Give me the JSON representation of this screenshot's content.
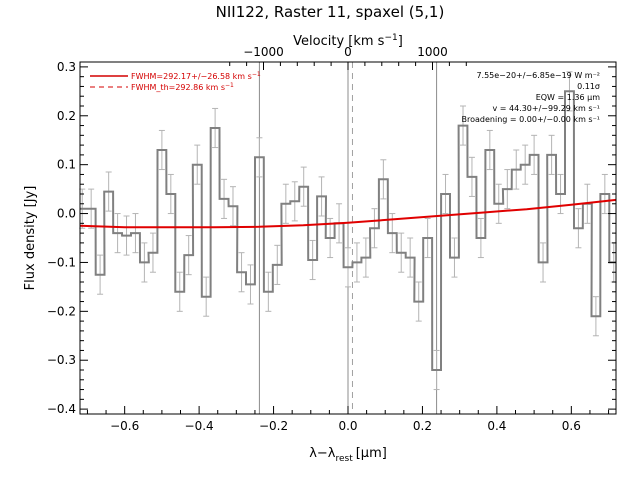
{
  "chart_data": {
    "type": "line",
    "title": "NII122, Raster 11, spaxel (5,1)",
    "xlabel": "λ−λ",
    "xlabel_sub": "rest",
    "xlabel_unit": "[μm]",
    "ylabel": "Flux density [Jy]",
    "top_axis_label": "Velocity [km s",
    "top_axis_sup": "−1",
    "top_axis_close": "]",
    "xlim": [
      -0.72,
      0.72
    ],
    "ylim": [
      -0.41,
      0.31
    ],
    "x_ticks": [
      -0.6,
      -0.4,
      -0.2,
      0.0,
      0.2,
      0.4,
      0.6
    ],
    "x_tick_labels": [
      "−0.6",
      "−0.4",
      "−0.2",
      "0.0",
      "0.2",
      "0.4",
      "0.6"
    ],
    "y_ticks": [
      -0.4,
      -0.3,
      -0.2,
      -0.1,
      0.0,
      0.1,
      0.2,
      0.3
    ],
    "y_tick_labels": [
      "−0.4",
      "−0.3",
      "−0.2",
      "−0.1",
      "0.0",
      "0.1",
      "0.2",
      "0.3"
    ],
    "top_ticks_x": [
      -0.227,
      0.0,
      0.227
    ],
    "top_tick_labels": [
      "−1000",
      "0",
      "1000"
    ],
    "vertical_lines_solid": [
      -0.238,
      0.0,
      0.238
    ],
    "vertical_line_dashed": 0.012,
    "legend": [
      {
        "label": "FWHM=292.17+/−26.58 km s",
        "sup": "−1",
        "style": "solid",
        "color": "#d40000"
      },
      {
        "label": "FWHM_th=292.86 km s",
        "sup": "−1",
        "style": "dashed",
        "color": "#d40000"
      }
    ],
    "annotations": [
      "7.55e−20+/−6.85e−19 W m⁻²",
      "0.11σ",
      "EQW = 1.36 μm",
      "v = 44.30+/−99.29 km s⁻¹",
      "Broadening = 0.00+/−0.00 km s⁻¹"
    ],
    "colors": {
      "spectrum": "#808080",
      "errorbar": "#b4b4b4",
      "fit": "#e00000",
      "annotation_text": "#000000"
    },
    "series": [
      {
        "name": "spectrum",
        "step_width": 0.0238,
        "x": [
          -0.714,
          -0.69,
          -0.666,
          -0.643,
          -0.619,
          -0.595,
          -0.571,
          -0.547,
          -0.524,
          -0.5,
          -0.476,
          -0.452,
          -0.428,
          -0.405,
          -0.381,
          -0.357,
          -0.333,
          -0.309,
          -0.286,
          -0.262,
          -0.238,
          -0.214,
          -0.19,
          -0.167,
          -0.143,
          -0.119,
          -0.095,
          -0.071,
          -0.048,
          -0.024,
          0.0,
          0.024,
          0.048,
          0.071,
          0.095,
          0.119,
          0.143,
          0.167,
          0.19,
          0.214,
          0.238,
          0.262,
          0.286,
          0.309,
          0.333,
          0.357,
          0.381,
          0.405,
          0.428,
          0.452,
          0.476,
          0.5,
          0.524,
          0.547,
          0.571,
          0.595,
          0.619,
          0.643,
          0.666,
          0.69,
          0.714
        ],
        "y": [
          0.01,
          0.01,
          -0.125,
          0.045,
          -0.04,
          -0.045,
          -0.04,
          -0.1,
          -0.08,
          0.13,
          0.04,
          -0.16,
          -0.085,
          0.1,
          -0.17,
          0.175,
          0.03,
          0.015,
          -0.12,
          -0.145,
          0.115,
          -0.16,
          -0.105,
          0.02,
          0.025,
          0.055,
          -0.095,
          0.035,
          -0.05,
          -0.02,
          -0.11,
          -0.1,
          -0.09,
          -0.03,
          0.07,
          -0.04,
          -0.08,
          -0.09,
          -0.18,
          -0.05,
          -0.32,
          0.04,
          -0.09,
          0.18,
          0.075,
          -0.05,
          0.13,
          0.02,
          0.05,
          0.09,
          0.1,
          0.12,
          -0.1,
          0.12,
          0.04,
          0.25,
          -0.03,
          0.02,
          -0.21,
          0.04,
          -0.1
        ],
        "err": 0.04
      },
      {
        "name": "fit",
        "x": [
          -0.72,
          -0.6,
          -0.48,
          -0.36,
          -0.24,
          -0.12,
          0.0,
          0.12,
          0.24,
          0.36,
          0.48,
          0.6,
          0.72
        ],
        "y": [
          -0.025,
          -0.028,
          -0.028,
          -0.028,
          -0.027,
          -0.024,
          -0.019,
          -0.012,
          -0.005,
          0.002,
          0.009,
          0.018,
          0.028
        ]
      }
    ]
  }
}
